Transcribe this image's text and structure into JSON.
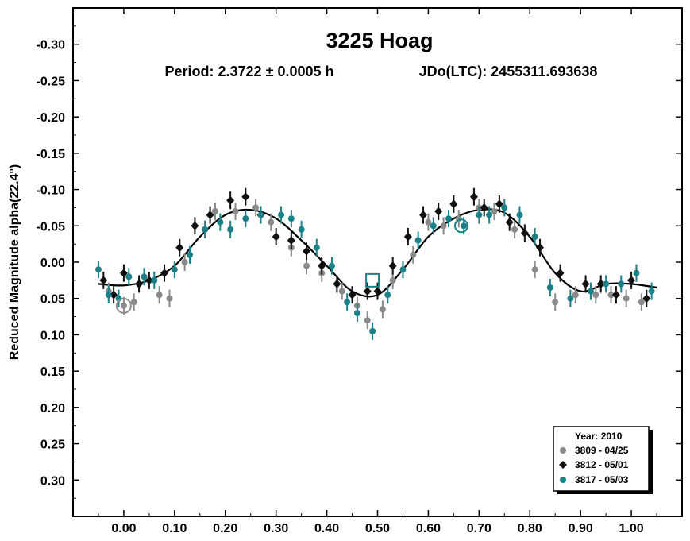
{
  "chart_data": {
    "type": "scatter",
    "title": "3225 Hoag",
    "period_text": "Period: 2.3722 ± 0.0005 h",
    "epoch_text": "JDo(LTC): 2455311.693638",
    "xlabel": "",
    "ylabel": "Reduced Magnitude alpha(22.4°)",
    "xlim": [
      -0.1,
      1.1
    ],
    "ylim": [
      -0.35,
      0.35
    ],
    "y_inverted": true,
    "x_ticks": [
      0.0,
      0.1,
      0.2,
      0.3,
      0.4,
      0.5,
      0.6,
      0.7,
      0.8,
      0.9,
      1.0
    ],
    "x_tick_labels": [
      "0.00",
      "0.10",
      "0.20",
      "0.30",
      "0.40",
      "0.50",
      "0.60",
      "0.70",
      "0.80",
      "0.90",
      "1.00"
    ],
    "y_ticks": [
      -0.3,
      -0.25,
      -0.2,
      -0.15,
      -0.1,
      -0.05,
      0.0,
      0.05,
      0.1,
      0.15,
      0.2,
      0.25,
      0.3
    ],
    "y_tick_labels": [
      "-0.30",
      "-0.25",
      "-0.20",
      "-0.15",
      "-0.10",
      "-0.05",
      "0.00",
      "0.05",
      "0.10",
      "0.15",
      "0.20",
      "0.25",
      "0.30"
    ],
    "legend": {
      "title": "Year: 2010",
      "placement": "bottom-right",
      "entries": [
        "3809 - 04/25",
        "3812 - 05/01",
        "3817 - 05/03"
      ]
    },
    "fit_curve": {
      "name": "Fourier fit",
      "x": [
        -0.05,
        0.0,
        0.05,
        0.1,
        0.15,
        0.2,
        0.25,
        0.3,
        0.35,
        0.4,
        0.45,
        0.5,
        0.55,
        0.6,
        0.65,
        0.7,
        0.75,
        0.8,
        0.85,
        0.9,
        0.95,
        1.0,
        1.05
      ],
      "y": [
        0.03,
        0.032,
        0.025,
        0.005,
        -0.035,
        -0.065,
        -0.072,
        -0.06,
        -0.03,
        0.005,
        0.04,
        0.045,
        0.01,
        -0.035,
        -0.06,
        -0.072,
        -0.068,
        -0.035,
        0.015,
        0.04,
        0.03,
        0.03,
        0.035
      ]
    },
    "series": [
      {
        "name": "3809 - 04/25",
        "color": "#8a8a8a",
        "marker": "circle",
        "x": [
          -0.03,
          0.0,
          0.02,
          0.07,
          0.09,
          0.12,
          0.16,
          0.18,
          0.22,
          0.26,
          0.29,
          0.33,
          0.36,
          0.39,
          0.43,
          0.46,
          0.48,
          0.51,
          0.53,
          0.57,
          0.6,
          0.63,
          0.66,
          0.7,
          0.73,
          0.77,
          0.81,
          0.85,
          0.89,
          0.93,
          0.96,
          0.99,
          1.02
        ],
        "y": [
          0.04,
          0.06,
          0.055,
          0.045,
          0.05,
          0.0,
          -0.045,
          -0.07,
          -0.07,
          -0.075,
          -0.055,
          -0.02,
          0.005,
          0.015,
          0.04,
          0.06,
          0.08,
          0.065,
          0.025,
          -0.01,
          -0.055,
          -0.05,
          -0.06,
          -0.075,
          -0.07,
          -0.045,
          0.01,
          0.055,
          0.045,
          0.045,
          0.045,
          0.05,
          0.055
        ]
      },
      {
        "name": "3812 - 05/01",
        "color": "#111111",
        "marker": "diamond",
        "x": [
          -0.04,
          -0.02,
          0.0,
          0.03,
          0.05,
          0.08,
          0.11,
          0.14,
          0.17,
          0.21,
          0.24,
          0.27,
          0.3,
          0.33,
          0.36,
          0.39,
          0.42,
          0.45,
          0.48,
          0.5,
          0.53,
          0.56,
          0.59,
          0.62,
          0.65,
          0.69,
          0.71,
          0.74,
          0.76,
          0.79,
          0.82,
          0.86,
          0.91,
          0.94,
          0.97,
          1.0,
          1.03
        ],
        "y": [
          0.025,
          0.045,
          0.015,
          0.03,
          0.025,
          0.015,
          -0.02,
          -0.05,
          -0.065,
          -0.085,
          -0.09,
          -0.065,
          -0.035,
          -0.03,
          -0.015,
          0.005,
          0.03,
          0.045,
          0.04,
          0.04,
          0.005,
          -0.035,
          -0.065,
          -0.07,
          -0.08,
          -0.09,
          -0.075,
          -0.08,
          -0.055,
          -0.04,
          -0.02,
          0.015,
          0.03,
          0.03,
          0.045,
          0.025,
          0.05
        ]
      },
      {
        "name": "3817 - 05/03",
        "color": "#1b8088",
        "marker": "circle",
        "x": [
          -0.05,
          -0.03,
          -0.01,
          0.01,
          0.04,
          0.06,
          0.1,
          0.13,
          0.16,
          0.19,
          0.21,
          0.24,
          0.27,
          0.31,
          0.33,
          0.35,
          0.38,
          0.41,
          0.44,
          0.46,
          0.49,
          0.52,
          0.55,
          0.58,
          0.61,
          0.64,
          0.67,
          0.7,
          0.72,
          0.75,
          0.78,
          0.81,
          0.84,
          0.88,
          0.92,
          0.95,
          0.98,
          1.01,
          1.04
        ],
        "y": [
          0.01,
          0.045,
          0.05,
          0.02,
          0.02,
          0.025,
          0.01,
          -0.01,
          -0.045,
          -0.055,
          -0.045,
          -0.06,
          -0.065,
          -0.065,
          -0.06,
          -0.045,
          -0.02,
          0.005,
          0.055,
          0.07,
          0.095,
          0.045,
          0.01,
          -0.03,
          -0.05,
          -0.06,
          -0.05,
          -0.065,
          -0.065,
          -0.075,
          -0.065,
          -0.035,
          0.035,
          0.05,
          0.04,
          0.03,
          0.03,
          0.015,
          0.04
        ]
      }
    ]
  }
}
